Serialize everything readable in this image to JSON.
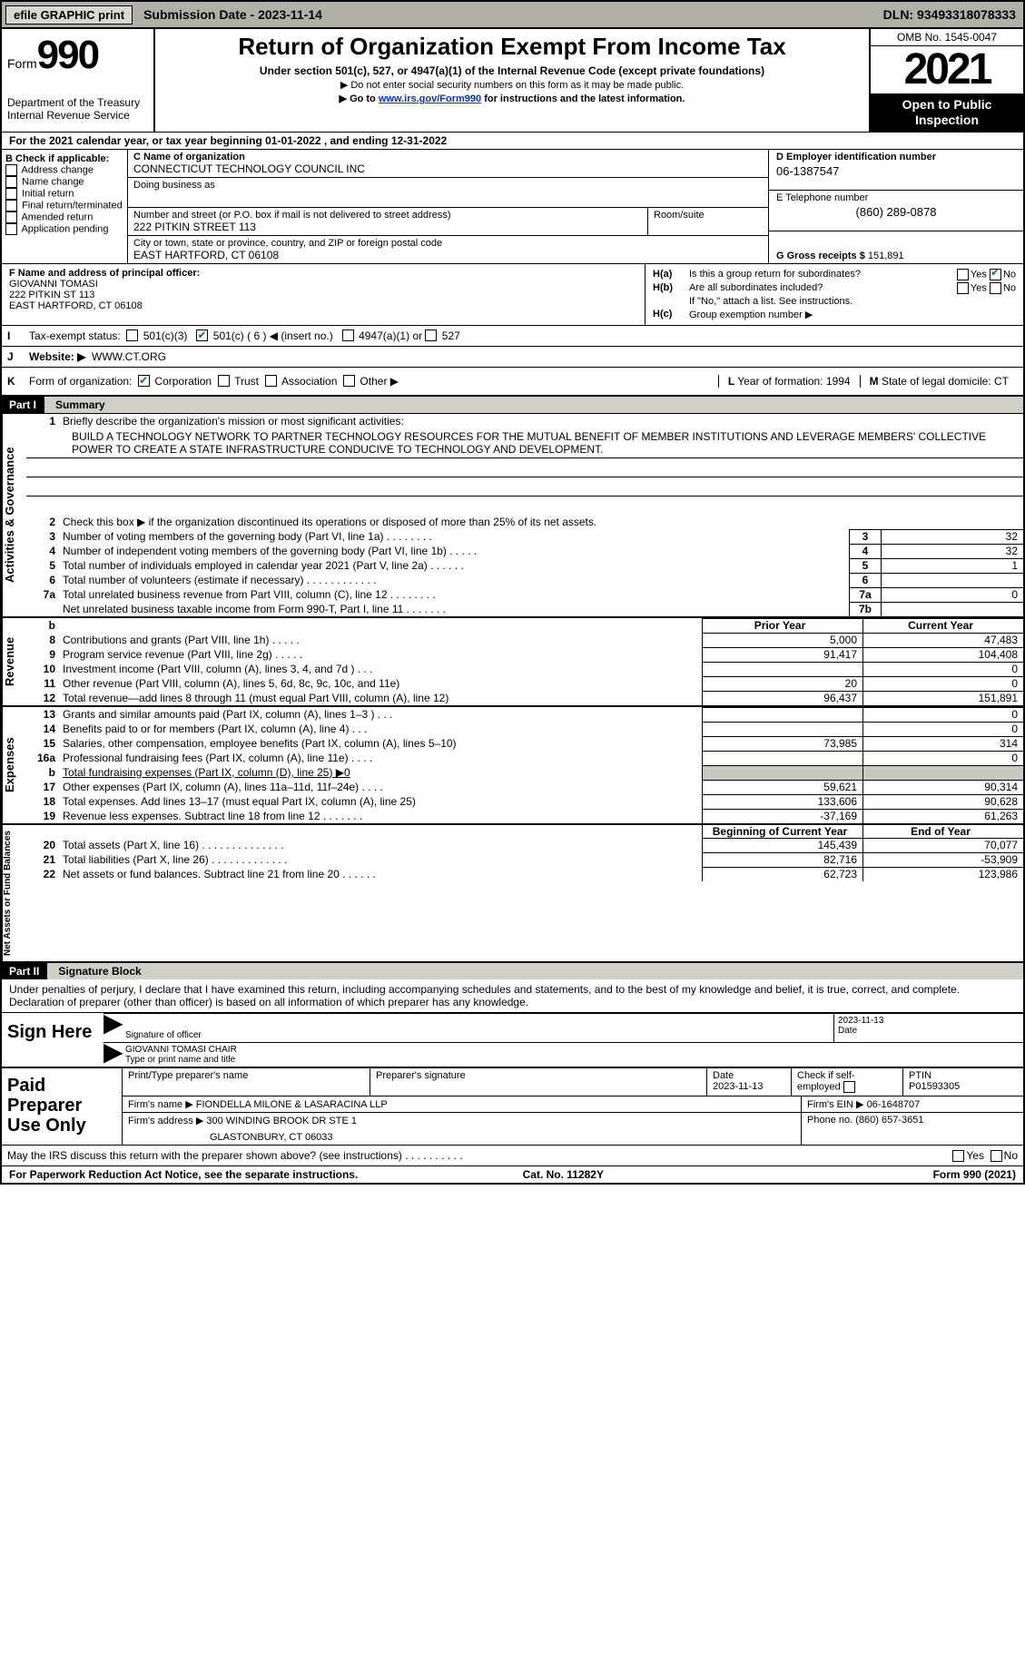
{
  "topbar": {
    "efile": "efile GRAPHIC print",
    "submission": "Submission Date - 2023-11-14",
    "dln": "DLN: 93493318078333"
  },
  "header": {
    "form_word": "Form",
    "form_num": "990",
    "dept": "Department of the Treasury",
    "irs": "Internal Revenue Service",
    "title": "Return of Organization Exempt From Income Tax",
    "sub1": "Under section 501(c), 527, or 4947(a)(1) of the Internal Revenue Code (except private foundations)",
    "sub2": "▶ Do not enter social security numbers on this form as it may be made public.",
    "sub3_pre": "▶ Go to ",
    "sub3_link": "www.irs.gov/Form990",
    "sub3_post": " for instructions and the latest information.",
    "omb": "OMB No. 1545-0047",
    "year": "2021",
    "open": "Open to Public Inspection"
  },
  "lineA": "For the 2021 calendar year, or tax year beginning 01-01-2022   , and ending 12-31-2022",
  "B": {
    "title": "B Check if applicable:",
    "addr": "Address change",
    "name": "Name change",
    "init": "Initial return",
    "final": "Final return/terminated",
    "amend": "Amended return",
    "app": "Application pending"
  },
  "C": {
    "name_lbl": "C Name of organization",
    "name": "CONNECTICUT TECHNOLOGY COUNCIL INC",
    "dba_lbl": "Doing business as",
    "dba": "",
    "street_lbl": "Number and street (or P.O. box if mail is not delivered to street address)",
    "street": "222 PITKIN STREET 113",
    "room_lbl": "Room/suite",
    "city_lbl": "City or town, state or province, country, and ZIP or foreign postal code",
    "city": "EAST HARTFORD, CT  06108"
  },
  "D": {
    "lbl": "D Employer identification number",
    "val": "06-1387547"
  },
  "E": {
    "lbl": "E Telephone number",
    "val": "(860) 289-0878"
  },
  "G": {
    "lbl": "G Gross receipts $",
    "val": "151,891"
  },
  "F": {
    "lbl": "F Name and address of principal officer:",
    "name": "GIOVANNI TOMASI",
    "street": "222 PITKIN ST 113",
    "city": "EAST HARTFORD, CT  06108"
  },
  "H": {
    "a_lbl": "H(a)",
    "a_txt": "Is this a group return for subordinates?",
    "b_lbl": "H(b)",
    "b_txt": "Are all subordinates included?",
    "b_note": "If \"No,\" attach a list. See instructions.",
    "c_lbl": "H(c)",
    "c_txt": "Group exemption number ▶",
    "yes": "Yes",
    "no": "No"
  },
  "I": {
    "lbl": "I",
    "txt": "Tax-exempt status:",
    "o1": "501(c)(3)",
    "o2": "501(c) ( 6 ) ◀ (insert no.)",
    "o3": "4947(a)(1) or",
    "o4": "527"
  },
  "J": {
    "lbl": "J",
    "txt": "Website: ▶",
    "val": "WWW.CT.ORG"
  },
  "K": {
    "lbl": "K",
    "txt": "Form of organization:",
    "corp": "Corporation",
    "trust": "Trust",
    "assoc": "Association",
    "other": "Other ▶"
  },
  "L": {
    "lbl": "L",
    "txt": "Year of formation: 1994"
  },
  "M": {
    "lbl": "M",
    "txt": "State of legal domicile: CT"
  },
  "part1": {
    "label": "Part I",
    "title": "Summary"
  },
  "summary": {
    "l1_lbl": "1",
    "l1": "Briefly describe the organization's mission or most significant activities:",
    "mission": "BUILD A TECHNOLOGY NETWORK TO PARTNER TECHNOLOGY RESOURCES FOR THE MUTUAL BENEFIT OF MEMBER INSTITUTIONS AND LEVERAGE MEMBERS' COLLECTIVE POWER TO CREATE A STATE INFRASTRUCTURE CONDUCIVE TO TECHNOLOGY AND DEVELOPMENT.",
    "l2": "Check this box ▶     if the organization discontinued its operations or disposed of more than 25% of its net assets.",
    "rows": [
      {
        "n": "3",
        "d": "Number of voting members of the governing body (Part VI, line 1a)   .    .    .    .    .    .    .    .",
        "box": "3",
        "v": "32"
      },
      {
        "n": "4",
        "d": "Number of independent voting members of the governing body (Part VI, line 1b)   .    .    .    .    .",
        "box": "4",
        "v": "32"
      },
      {
        "n": "5",
        "d": "Total number of individuals employed in calendar year 2021 (Part V, line 2a)   .    .    .    .    .    .",
        "box": "5",
        "v": "1"
      },
      {
        "n": "6",
        "d": "Total number of volunteers (estimate if necessary)    .    .    .    .    .    .    .    .    .    .    .    .",
        "box": "6",
        "v": ""
      },
      {
        "n": "7a",
        "d": "Total unrelated business revenue from Part VIII, column (C), line 12    .    .    .    .    .    .    .    .",
        "box": "7a",
        "v": "0"
      },
      {
        "n": "",
        "d": "Net unrelated business taxable income from Form 990-T, Part I, line 11   .    .    .    .    .    .    .",
        "box": "7b",
        "v": ""
      }
    ],
    "col_prior": "Prior Year",
    "col_curr": "Current Year",
    "rev": [
      {
        "n": "8",
        "d": "Contributions and grants (Part VIII, line 1h)    .    .    .    .    .",
        "p": "5,000",
        "c": "47,483"
      },
      {
        "n": "9",
        "d": "Program service revenue (Part VIII, line 2g)    .    .    .    .    .",
        "p": "91,417",
        "c": "104,408"
      },
      {
        "n": "10",
        "d": "Investment income (Part VIII, column (A), lines 3, 4, and 7d )    .    .    .",
        "p": "",
        "c": "0"
      },
      {
        "n": "11",
        "d": "Other revenue (Part VIII, column (A), lines 5, 6d, 8c, 9c, 10c, and 11e)",
        "p": "20",
        "c": "0"
      },
      {
        "n": "12",
        "d": "Total revenue—add lines 8 through 11 (must equal Part VIII, column (A), line 12)",
        "p": "96,437",
        "c": "151,891"
      }
    ],
    "exp": [
      {
        "n": "13",
        "d": "Grants and similar amounts paid (Part IX, column (A), lines 1–3 )    .    .    .",
        "p": "",
        "c": "0"
      },
      {
        "n": "14",
        "d": "Benefits paid to or for members (Part IX, column (A), line 4)    .    .    .",
        "p": "",
        "c": "0"
      },
      {
        "n": "15",
        "d": "Salaries, other compensation, employee benefits (Part IX, column (A), lines 5–10)",
        "p": "73,985",
        "c": "314"
      },
      {
        "n": "16a",
        "d": "Professional fundraising fees (Part IX, column (A), line 11e)    .    .    .    .",
        "p": "",
        "c": "0"
      },
      {
        "n": "b",
        "d": "Total fundraising expenses (Part IX, column (D), line 25) ▶0",
        "p": "SHADE",
        "c": "SHADE"
      },
      {
        "n": "17",
        "d": "Other expenses (Part IX, column (A), lines 11a–11d, 11f–24e)    .    .    .    .",
        "p": "59,621",
        "c": "90,314"
      },
      {
        "n": "18",
        "d": "Total expenses. Add lines 13–17 (must equal Part IX, column (A), line 25)",
        "p": "133,606",
        "c": "90,628"
      },
      {
        "n": "19",
        "d": "Revenue less expenses. Subtract line 18 from line 12  .    .    .    .    .    .    .",
        "p": "-37,169",
        "c": "61,263"
      }
    ],
    "col_beg": "Beginning of Current Year",
    "col_end": "End of Year",
    "net": [
      {
        "n": "20",
        "d": "Total assets (Part X, line 16)  .    .    .    .    .    .    .    .    .    .    .    .    .    .",
        "p": "145,439",
        "c": "70,077"
      },
      {
        "n": "21",
        "d": "Total liabilities (Part X, line 26)  .    .    .    .    .    .    .    .    .    .    .    .    .",
        "p": "82,716",
        "c": "-53,909"
      },
      {
        "n": "22",
        "d": "Net assets or fund balances. Subtract line 21 from line 20   .    .    .    .    .    .",
        "p": "62,723",
        "c": "123,986"
      }
    ],
    "vlabels": {
      "ag": "Activities & Governance",
      "rev": "Revenue",
      "exp": "Expenses",
      "net": "Net Assets or Fund Balances"
    }
  },
  "part2": {
    "label": "Part II",
    "title": "Signature Block"
  },
  "sig": {
    "decl": "Under penalties of perjury, I declare that I have examined this return, including accompanying schedules and statements, and to the best of my knowledge and belief, it is true, correct, and complete. Declaration of preparer (other than officer) is based on all information of which preparer has any knowledge.",
    "sign_here": "Sign Here",
    "sig_officer": "Signature of officer",
    "date": "Date",
    "date_val": "2023-11-13",
    "name_title": "GIOVANNI TOMASI CHAIR",
    "type_name": "Type or print name and title"
  },
  "prep": {
    "title": "Paid Preparer Use Only",
    "print_name_lbl": "Print/Type preparer's name",
    "prep_sig_lbl": "Preparer's signature",
    "date_lbl": "Date",
    "date_val": "2023-11-13",
    "check_lbl": "Check         if self-employed",
    "ptin_lbl": "PTIN",
    "ptin": "P01593305",
    "firm_name_lbl": "Firm's name      ▶",
    "firm_name": "FIONDELLA MILONE & LASARACINA LLP",
    "firm_ein_lbl": "Firm's EIN ▶",
    "firm_ein": "06-1648707",
    "firm_addr_lbl": "Firm's address ▶",
    "firm_addr1": "300 WINDING BROOK DR STE 1",
    "firm_addr2": "GLASTONBURY, CT  06033",
    "phone_lbl": "Phone no.",
    "phone": "(860) 657-3651"
  },
  "footer": {
    "discuss": "May the IRS discuss this return with the preparer shown above? (see instructions)    .    .    .    .    .    .    .    .    .    .",
    "yes": "Yes",
    "no": "No",
    "pra": "For Paperwork Reduction Act Notice, see the separate instructions.",
    "cat": "Cat. No. 11282Y",
    "form": "Form 990 (2021)"
  }
}
